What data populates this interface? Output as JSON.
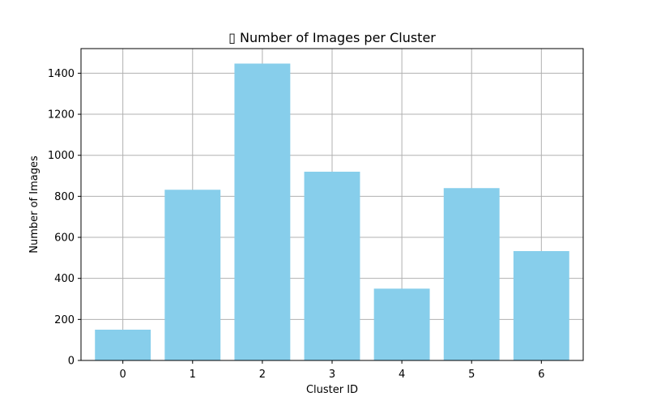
{
  "chart_data": {
    "type": "bar",
    "title": "▯ Number of Images per Cluster",
    "xlabel": "Cluster ID",
    "ylabel": "Number of Images",
    "categories": [
      "0",
      "1",
      "2",
      "3",
      "4",
      "5",
      "6"
    ],
    "values": [
      150,
      832,
      1447,
      920,
      350,
      840,
      533
    ],
    "ylim": [
      0,
      1520
    ],
    "yticks": [
      0,
      200,
      400,
      600,
      800,
      1000,
      1200,
      1400
    ],
    "grid": true,
    "bar_color": "#87ceeb"
  }
}
